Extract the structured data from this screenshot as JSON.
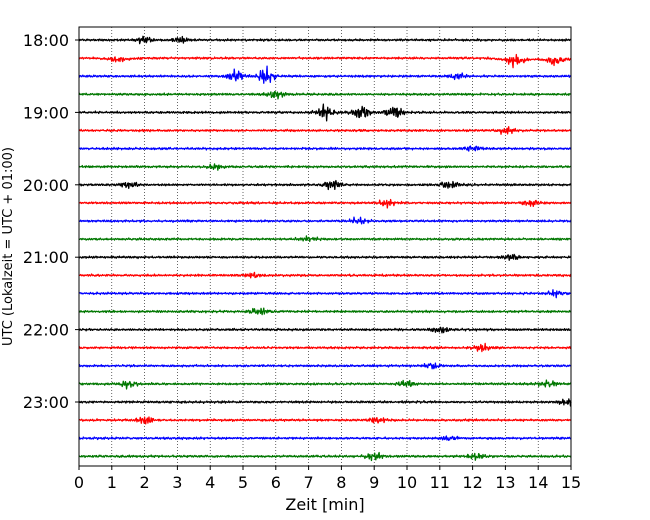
{
  "chart_data": {
    "type": "line",
    "title": "",
    "xlabel": "Zeit  [min]",
    "ylabel": "UTC (Lokalzeit = UTC + 01:00)",
    "xlim": [
      0,
      15
    ],
    "x_ticks": [
      "0",
      "1",
      "2",
      "3",
      "4",
      "5",
      "6",
      "7",
      "8",
      "9",
      "10",
      "11",
      "12",
      "13",
      "14",
      "15"
    ],
    "y_ticks": [
      {
        "label": "18:00",
        "row": 0
      },
      {
        "label": "19:00",
        "row": 4
      },
      {
        "label": "20:00",
        "row": 8
      },
      {
        "label": "21:00",
        "row": 12
      },
      {
        "label": "22:00",
        "row": 16
      },
      {
        "label": "23:00",
        "row": 20
      }
    ],
    "grid": {
      "x": true,
      "y": false,
      "style": "dotted"
    },
    "legend": "none",
    "trace_colors": [
      "#000000",
      "#ff0000",
      "#0000ff",
      "#007700"
    ],
    "traces": [
      {
        "start": "18:00",
        "color": "#000000",
        "bursts": [
          {
            "t": 2.0,
            "a": 1.0
          },
          {
            "t": 3.1,
            "a": 0.8
          }
        ]
      },
      {
        "start": "18:15",
        "color": "#ff0000",
        "bursts": [
          {
            "t": 1.2,
            "a": 0.7
          },
          {
            "t": 13.3,
            "a": 1.4
          },
          {
            "t": 14.5,
            "a": 1.2
          }
        ],
        "drift": -0.5
      },
      {
        "start": "18:30",
        "color": "#0000ff",
        "bursts": [
          {
            "t": 4.8,
            "a": 1.6
          },
          {
            "t": 5.7,
            "a": 1.8
          },
          {
            "t": 11.5,
            "a": 0.8
          }
        ]
      },
      {
        "start": "18:45",
        "color": "#007700",
        "bursts": [
          {
            "t": 6.0,
            "a": 1.0
          }
        ]
      },
      {
        "start": "19:00",
        "color": "#000000",
        "bursts": [
          {
            "t": 7.5,
            "a": 1.6
          },
          {
            "t": 8.6,
            "a": 1.8
          },
          {
            "t": 9.6,
            "a": 1.6
          }
        ]
      },
      {
        "start": "19:15",
        "color": "#ff0000",
        "bursts": [
          {
            "t": 13.0,
            "a": 0.8
          }
        ]
      },
      {
        "start": "19:30",
        "color": "#0000ff",
        "bursts": [
          {
            "t": 12.0,
            "a": 0.7
          }
        ]
      },
      {
        "start": "19:45",
        "color": "#007700",
        "bursts": [
          {
            "t": 4.2,
            "a": 0.6
          }
        ]
      },
      {
        "start": "20:00",
        "color": "#000000",
        "bursts": [
          {
            "t": 1.5,
            "a": 0.9
          },
          {
            "t": 7.7,
            "a": 1.2
          },
          {
            "t": 11.3,
            "a": 1.0
          }
        ]
      },
      {
        "start": "20:15",
        "color": "#ff0000",
        "bursts": [
          {
            "t": 9.4,
            "a": 1.0
          },
          {
            "t": 13.8,
            "a": 0.8
          }
        ]
      },
      {
        "start": "20:30",
        "color": "#0000ff",
        "bursts": [
          {
            "t": 8.5,
            "a": 0.7
          }
        ]
      },
      {
        "start": "20:45",
        "color": "#007700",
        "bursts": [
          {
            "t": 7.0,
            "a": 0.8
          }
        ]
      },
      {
        "start": "21:00",
        "color": "#000000",
        "bursts": [
          {
            "t": 13.2,
            "a": 0.7
          }
        ]
      },
      {
        "start": "21:15",
        "color": "#ff0000",
        "bursts": [
          {
            "t": 5.3,
            "a": 0.8
          }
        ]
      },
      {
        "start": "21:30",
        "color": "#0000ff",
        "bursts": [
          {
            "t": 14.5,
            "a": 0.8
          }
        ]
      },
      {
        "start": "21:45",
        "color": "#007700",
        "bursts": [
          {
            "t": 5.5,
            "a": 0.9
          }
        ]
      },
      {
        "start": "22:00",
        "color": "#000000",
        "bursts": [
          {
            "t": 11.0,
            "a": 0.7
          }
        ]
      },
      {
        "start": "22:15",
        "color": "#ff0000",
        "bursts": [
          {
            "t": 12.3,
            "a": 0.8
          }
        ]
      },
      {
        "start": "22:30",
        "color": "#0000ff",
        "bursts": [
          {
            "t": 10.8,
            "a": 0.9
          }
        ]
      },
      {
        "start": "22:45",
        "color": "#007700",
        "bursts": [
          {
            "t": 1.5,
            "a": 0.9
          },
          {
            "t": 10.0,
            "a": 0.8
          },
          {
            "t": 14.3,
            "a": 0.8
          }
        ]
      },
      {
        "start": "23:00",
        "color": "#000000",
        "bursts": [
          {
            "t": 14.9,
            "a": 0.9
          }
        ]
      },
      {
        "start": "23:15",
        "color": "#ff0000",
        "bursts": [
          {
            "t": 2.0,
            "a": 1.0
          },
          {
            "t": 9.1,
            "a": 0.8
          }
        ]
      },
      {
        "start": "23:30",
        "color": "#0000ff",
        "bursts": [
          {
            "t": 11.3,
            "a": 0.7
          }
        ]
      },
      {
        "start": "23:45",
        "color": "#007700",
        "bursts": [
          {
            "t": 9.0,
            "a": 0.9
          },
          {
            "t": 12.1,
            "a": 0.8
          }
        ]
      }
    ]
  }
}
